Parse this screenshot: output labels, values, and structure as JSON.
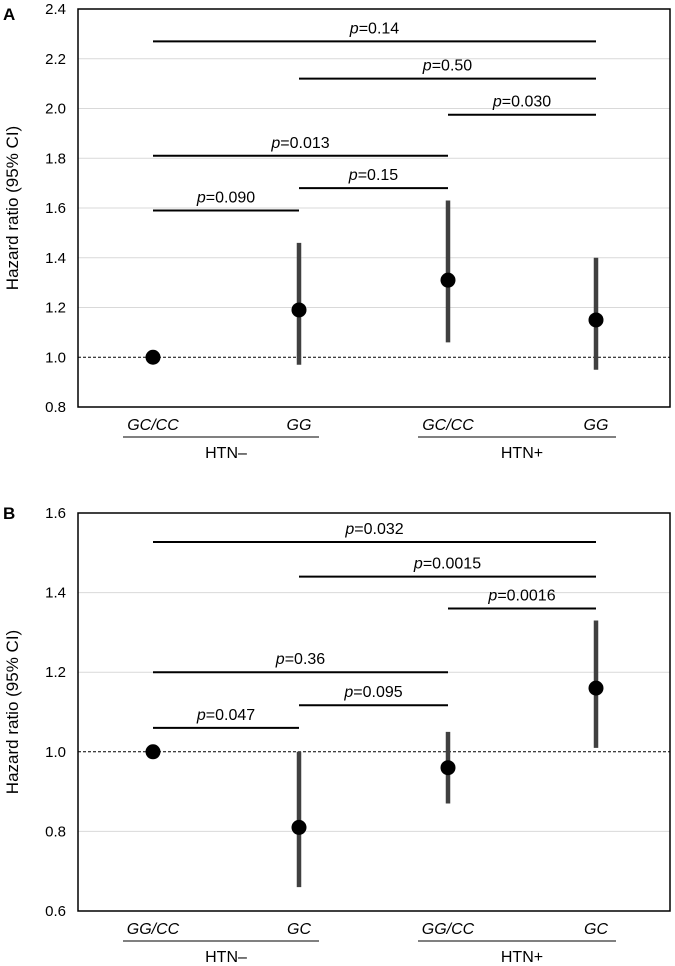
{
  "chart_data": [
    {
      "panel": "A",
      "type": "scatter",
      "ylabel": "Hazard ratio (95% CI)",
      "ylim": [
        0.8,
        2.4
      ],
      "yticks": [
        0.8,
        1.0,
        1.2,
        1.4,
        1.6,
        1.8,
        2.0,
        2.2,
        2.4
      ],
      "ytick_labels": [
        "0.8",
        "1.0",
        "1.2",
        "1.4",
        "1.6",
        "1.8",
        "2.0",
        "2.2",
        "2.4"
      ],
      "reference_line": 1.0,
      "categories": [
        "GC/CC",
        "GG",
        "GC/CC",
        "GG"
      ],
      "groups": [
        {
          "label": "HTN–",
          "members": [
            0,
            1
          ]
        },
        {
          "label": "HTN+",
          "members": [
            2,
            3
          ]
        }
      ],
      "points": [
        {
          "hr": 1.0,
          "lo": null,
          "hi": null
        },
        {
          "hr": 1.19,
          "lo": 0.97,
          "hi": 1.46
        },
        {
          "hr": 1.31,
          "lo": 1.06,
          "hi": 1.63
        },
        {
          "hr": 1.15,
          "lo": 0.95,
          "hi": 1.4
        }
      ],
      "comparisons": [
        {
          "from": 0,
          "to": 3,
          "y": 2.27,
          "label": "p",
          "value": "=0.14"
        },
        {
          "from": 1,
          "to": 3,
          "y": 2.12,
          "label": "p",
          "value": "=0.50"
        },
        {
          "from": 2,
          "to": 3,
          "y": 1.975,
          "label": "p",
          "value": "=0.030"
        },
        {
          "from": 0,
          "to": 2,
          "y": 1.81,
          "label": "p",
          "value": "=0.013"
        },
        {
          "from": 1,
          "to": 2,
          "y": 1.68,
          "label": "p",
          "value": "=0.15"
        },
        {
          "from": 0,
          "to": 1,
          "y": 1.59,
          "label": "p",
          "value": "=0.090"
        }
      ]
    },
    {
      "panel": "B",
      "type": "scatter",
      "ylabel": "Hazard ratio (95% CI)",
      "ylim": [
        0.6,
        1.6
      ],
      "yticks": [
        0.6,
        0.8,
        1.0,
        1.2,
        1.4,
        1.6
      ],
      "ytick_labels": [
        "0.6",
        "0.8",
        "1.0",
        "1.2",
        "1.4",
        "1.6"
      ],
      "reference_line": 1.0,
      "categories": [
        "GG/CC",
        "GC",
        "GG/CC",
        "GC"
      ],
      "groups": [
        {
          "label": "HTN–",
          "members": [
            0,
            1
          ]
        },
        {
          "label": "HTN+",
          "members": [
            2,
            3
          ]
        }
      ],
      "points": [
        {
          "hr": 1.0,
          "lo": null,
          "hi": null
        },
        {
          "hr": 0.81,
          "lo": 0.66,
          "hi": 1.0
        },
        {
          "hr": 0.96,
          "lo": 0.87,
          "hi": 1.05
        },
        {
          "hr": 1.16,
          "lo": 1.01,
          "hi": 1.33
        }
      ],
      "comparisons": [
        {
          "from": 0,
          "to": 3,
          "y": 1.527,
          "label": "p",
          "value": "=0.032"
        },
        {
          "from": 1,
          "to": 3,
          "y": 1.44,
          "label": "p",
          "value": "=0.0015"
        },
        {
          "from": 2,
          "to": 3,
          "y": 1.36,
          "label": "p",
          "value": "=0.0016"
        },
        {
          "from": 0,
          "to": 2,
          "y": 1.2,
          "label": "p",
          "value": "=0.36"
        },
        {
          "from": 1,
          "to": 2,
          "y": 1.117,
          "label": "p",
          "value": "=0.095"
        },
        {
          "from": 0,
          "to": 1,
          "y": 1.06,
          "label": "p",
          "value": "=0.047"
        }
      ]
    }
  ]
}
